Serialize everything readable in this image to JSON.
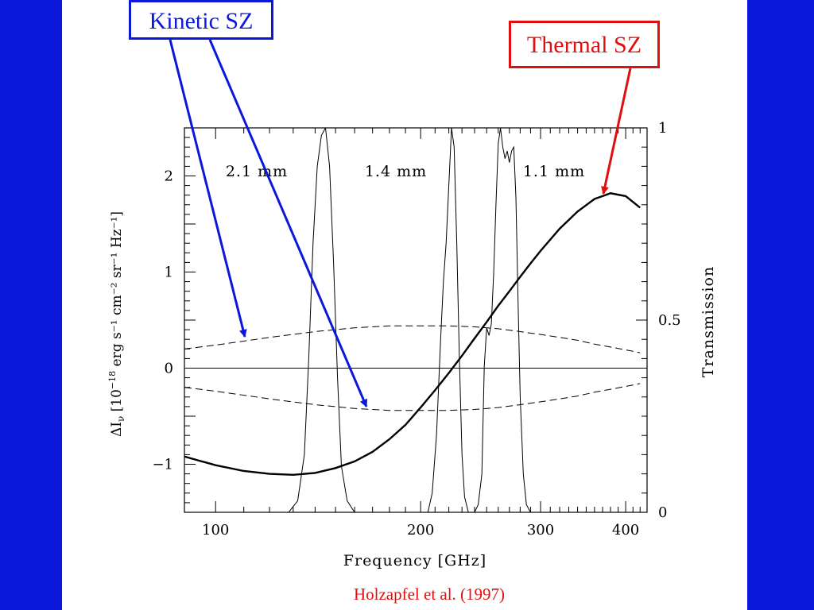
{
  "colors": {
    "frame": "#0b18d9",
    "kinetic": "#0b18d9",
    "thermal": "#e01010",
    "citation": "#e01010",
    "plot": "#000000"
  },
  "annotations": {
    "kinetic_label": "Kinetic SZ",
    "thermal_label": "Thermal SZ",
    "citation": "Holzapfel et al. (1997)"
  },
  "chart_data": {
    "type": "line",
    "title": "",
    "xlabel": "Frequency [GHz]",
    "ylabel_left": "ΔI",
    "ylabel_left_sub": "ν",
    "ylabel_left_rest": " [10",
    "ylabel_left_exp": "−18",
    "ylabel_left_units": " erg s⁻¹ cm⁻² sr⁻¹ Hz⁻¹]",
    "ylabel_right": "Transmission",
    "x_scale": "log",
    "xlim": [
      90,
      430
    ],
    "ylim": [
      -1.5,
      2.5
    ],
    "y2lim": [
      0,
      1
    ],
    "xticks_labeled": [
      "100",
      "200",
      "300",
      "400"
    ],
    "yticks_labeled": [
      "2",
      "1",
      "0",
      "−1"
    ],
    "y2ticks_labeled": [
      "1",
      "0.5",
      "0"
    ],
    "band_labels": [
      "2.1 mm",
      "1.4 mm",
      "1.1 mm"
    ],
    "series": [
      {
        "name": "Thermal SZ",
        "style": "solid-thick",
        "x": [
          90,
          100,
          110,
          120,
          130,
          140,
          150,
          160,
          170,
          180,
          190,
          200,
          210,
          220,
          230,
          240,
          250,
          260,
          270,
          280,
          290,
          300,
          320,
          340,
          360,
          380,
          400,
          420
        ],
        "y": [
          -0.92,
          -1.01,
          -1.07,
          -1.1,
          -1.11,
          -1.09,
          -1.04,
          -0.97,
          -0.87,
          -0.74,
          -0.59,
          -0.41,
          -0.23,
          -0.05,
          0.13,
          0.31,
          0.48,
          0.65,
          0.8,
          0.95,
          1.09,
          1.22,
          1.45,
          1.63,
          1.76,
          1.82,
          1.79,
          1.67
        ]
      },
      {
        "name": "Kinetic SZ",
        "style": "dashed",
        "x": [
          90,
          100,
          120,
          140,
          160,
          180,
          200,
          220,
          240,
          260,
          280,
          300,
          320,
          340,
          360,
          380,
          400,
          420
        ],
        "y": [
          0.2,
          0.24,
          0.32,
          0.38,
          0.42,
          0.44,
          0.44,
          0.44,
          0.43,
          0.41,
          0.38,
          0.35,
          0.32,
          0.29,
          0.25,
          0.22,
          0.19,
          0.16
        ]
      },
      {
        "name": "Kinetic SZ (negative)",
        "style": "dashed",
        "x": [
          90,
          100,
          120,
          140,
          160,
          180,
          200,
          220,
          240,
          260,
          280,
          300,
          320,
          340,
          360,
          380,
          400,
          420
        ],
        "y": [
          -0.2,
          -0.24,
          -0.32,
          -0.38,
          -0.42,
          -0.44,
          -0.44,
          -0.44,
          -0.43,
          -0.41,
          -0.38,
          -0.35,
          -0.32,
          -0.29,
          -0.25,
          -0.22,
          -0.19,
          -0.16
        ]
      },
      {
        "name": "2.1 mm band transmission",
        "style": "thin",
        "axis": "right",
        "x": [
          128,
          132,
          135,
          137,
          139,
          141,
          143,
          145,
          147,
          149,
          151,
          153,
          156,
          160
        ],
        "y": [
          0.0,
          0.03,
          0.15,
          0.4,
          0.7,
          0.9,
          0.98,
          1.0,
          0.9,
          0.65,
          0.35,
          0.12,
          0.03,
          0.0
        ]
      },
      {
        "name": "1.4 mm band transmission",
        "style": "thin",
        "axis": "right",
        "x": [
          205,
          208,
          211,
          214,
          216,
          218,
          220,
          222,
          224,
          226,
          228,
          230,
          232,
          235
        ],
        "y": [
          0.0,
          0.05,
          0.2,
          0.45,
          0.6,
          0.7,
          0.85,
          1.0,
          0.95,
          0.7,
          0.4,
          0.15,
          0.04,
          0.0
        ]
      },
      {
        "name": "1.1 mm band transmission",
        "style": "thin",
        "axis": "right",
        "x": [
          240,
          243,
          246,
          248,
          250,
          252,
          254,
          256,
          258,
          260,
          262,
          264,
          266,
          268,
          270,
          272,
          274,
          276,
          278,
          280,
          283,
          286,
          290
        ],
        "y": [
          0.0,
          0.02,
          0.1,
          0.38,
          0.48,
          0.46,
          0.49,
          0.62,
          0.8,
          0.96,
          1.0,
          0.95,
          0.92,
          0.94,
          0.91,
          0.94,
          0.95,
          0.82,
          0.55,
          0.3,
          0.1,
          0.02,
          0.0
        ]
      }
    ]
  }
}
